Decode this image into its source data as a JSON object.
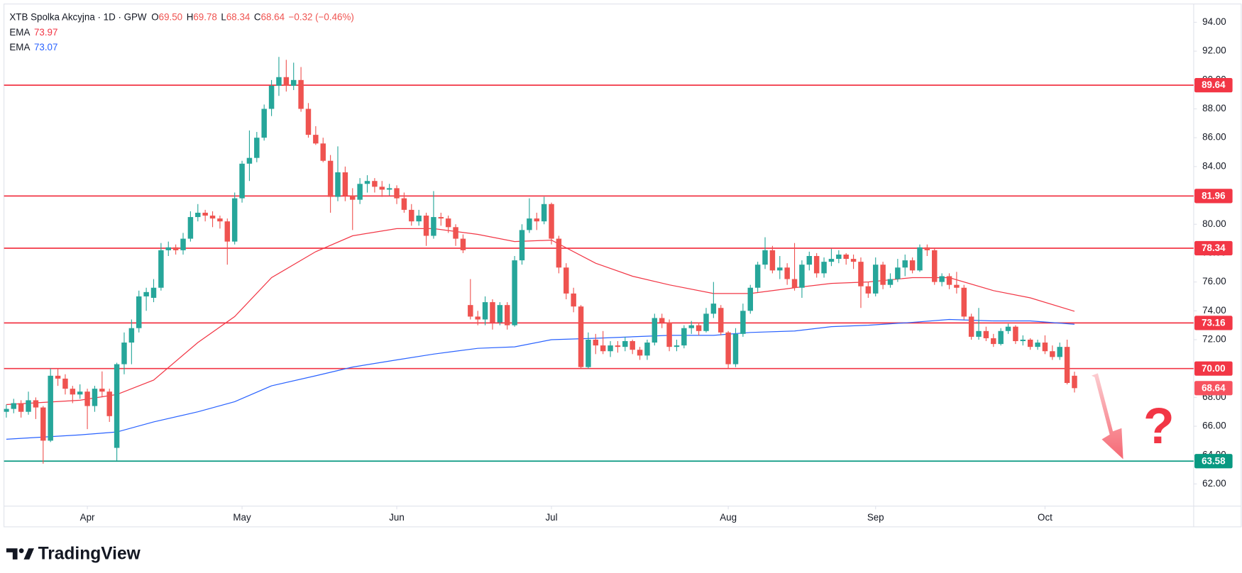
{
  "chart_data": {
    "type": "candlestick",
    "header": {
      "symbol": "XTB Spolka Akcyjna · 1D · GPW",
      "fields": [
        {
          "key": "O",
          "value": "69.50"
        },
        {
          "key": "H",
          "value": "69.78"
        },
        {
          "key": "L",
          "value": "68.34"
        },
        {
          "key": "C",
          "value": "68.64"
        }
      ],
      "change": "−0.32 (−0.46%)"
    },
    "up_color": "#26a69a",
    "down_color": "#ef5350",
    "xlim": [
      -0.32,
      161.18
    ],
    "ylim": [
      60.46,
      95.27
    ],
    "grid": false,
    "xticks": [
      {
        "value": 11,
        "label": "Apr"
      },
      {
        "value": 32,
        "label": "May"
      },
      {
        "value": 53,
        "label": "Jun"
      },
      {
        "value": 74,
        "label": "Jul"
      },
      {
        "value": 98,
        "label": "Aug"
      },
      {
        "value": 118,
        "label": "Sep"
      },
      {
        "value": 141,
        "label": "Oct"
      }
    ],
    "yticks": [
      {
        "value": 62,
        "label": "62.00"
      },
      {
        "value": 64,
        "label": "64.00"
      },
      {
        "value": 66,
        "label": "66.00"
      },
      {
        "value": 68,
        "label": "68.00"
      },
      {
        "value": 70,
        "label": "70.00"
      },
      {
        "value": 72,
        "label": "72.00"
      },
      {
        "value": 74,
        "label": "74.00"
      },
      {
        "value": 76,
        "label": "76.00"
      },
      {
        "value": 78,
        "label": "78.00"
      },
      {
        "value": 80,
        "label": "80.00"
      },
      {
        "value": 82,
        "label": "82.00"
      },
      {
        "value": 84,
        "label": "84.00"
      },
      {
        "value": 86,
        "label": "86.00"
      },
      {
        "value": 88,
        "label": "88.00"
      },
      {
        "value": 90,
        "label": "90.00"
      },
      {
        "value": 92,
        "label": "92.00"
      },
      {
        "value": 94,
        "label": "94.00"
      }
    ],
    "ohlc": [
      [
        67.0,
        67.5,
        66.6,
        67.2
      ],
      [
        67.2,
        67.9,
        66.9,
        67.6
      ],
      [
        67.6,
        67.8,
        66.6,
        67.0
      ],
      [
        67.0,
        68.4,
        66.8,
        67.8
      ],
      [
        67.8,
        68.0,
        66.5,
        67.3
      ],
      [
        67.3,
        67.4,
        63.4,
        65.0
      ],
      [
        65.0,
        70.0,
        64.9,
        69.5
      ],
      [
        69.5,
        70.0,
        68.8,
        69.3
      ],
      [
        69.3,
        69.6,
        68.2,
        68.6
      ],
      [
        68.6,
        68.8,
        67.6,
        68.2
      ],
      [
        68.2,
        68.9,
        67.9,
        68.4
      ],
      [
        68.4,
        68.6,
        65.8,
        67.4
      ],
      [
        67.4,
        68.8,
        67.0,
        68.6
      ],
      [
        68.6,
        69.8,
        68.0,
        68.4
      ],
      [
        68.4,
        68.6,
        66.3,
        66.7
      ],
      [
        64.5,
        70.4,
        63.6,
        70.3
      ],
      [
        70.3,
        72.5,
        69.6,
        71.8
      ],
      [
        71.8,
        73.4,
        70.3,
        72.8
      ],
      [
        72.8,
        75.4,
        72.5,
        75.0
      ],
      [
        75.0,
        75.6,
        74.0,
        75.3
      ],
      [
        74.9,
        76.2,
        74.6,
        75.6
      ],
      [
        75.6,
        78.7,
        75.4,
        78.2
      ],
      [
        78.2,
        78.8,
        77.8,
        78.4
      ],
      [
        78.4,
        78.6,
        77.9,
        78.2
      ],
      [
        78.2,
        79.4,
        77.9,
        79.0
      ],
      [
        79.0,
        80.9,
        78.8,
        80.5
      ],
      [
        80.5,
        81.4,
        80.2,
        80.8
      ],
      [
        80.8,
        81.0,
        80.2,
        80.6
      ],
      [
        80.6,
        80.9,
        79.8,
        80.4
      ],
      [
        80.4,
        80.6,
        79.7,
        80.2
      ],
      [
        80.2,
        80.4,
        77.2,
        78.8
      ],
      [
        78.8,
        82.2,
        78.6,
        81.8
      ],
      [
        81.8,
        84.4,
        81.5,
        84.2
      ],
      [
        84.2,
        86.5,
        83.0,
        84.6
      ],
      [
        84.6,
        86.4,
        84.3,
        86.0
      ],
      [
        86.0,
        88.3,
        85.8,
        88.0
      ],
      [
        88.0,
        90.0,
        87.5,
        89.6
      ],
      [
        89.6,
        91.6,
        88.9,
        90.2
      ],
      [
        90.2,
        91.4,
        89.2,
        89.6
      ],
      [
        89.6,
        91.2,
        89.3,
        90.0
      ],
      [
        90.0,
        90.9,
        87.8,
        88.0
      ],
      [
        88.0,
        88.4,
        86.0,
        86.2
      ],
      [
        86.2,
        86.8,
        85.5,
        85.6
      ],
      [
        85.6,
        86.0,
        84.3,
        84.4
      ],
      [
        84.4,
        84.8,
        80.8,
        81.9
      ],
      [
        81.9,
        85.4,
        81.6,
        83.6
      ],
      [
        83.6,
        84.0,
        81.6,
        82.0
      ],
      [
        82.0,
        82.5,
        79.6,
        81.7
      ],
      [
        81.7,
        83.2,
        81.4,
        82.8
      ],
      [
        82.8,
        83.4,
        82.2,
        83.0
      ],
      [
        83.0,
        83.2,
        82.2,
        82.6
      ],
      [
        82.6,
        83.0,
        81.9,
        82.4
      ],
      [
        82.4,
        82.8,
        82.0,
        82.5
      ],
      [
        82.5,
        82.7,
        81.4,
        81.8
      ],
      [
        81.8,
        82.2,
        80.8,
        81.0
      ],
      [
        81.0,
        81.4,
        79.9,
        80.2
      ],
      [
        80.2,
        81.0,
        79.9,
        80.6
      ],
      [
        80.6,
        80.8,
        78.5,
        79.2
      ],
      [
        79.2,
        82.3,
        79.0,
        80.5
      ],
      [
        80.5,
        80.8,
        79.9,
        80.4
      ],
      [
        80.4,
        80.6,
        79.4,
        79.8
      ],
      [
        79.8,
        80.0,
        78.5,
        79.0
      ],
      [
        79.0,
        79.3,
        78.0,
        78.2
      ],
      [
        74.4,
        76.2,
        73.4,
        73.6
      ],
      [
        73.6,
        74.0,
        73.0,
        73.4
      ],
      [
        73.4,
        75.0,
        73.0,
        74.6
      ],
      [
        74.6,
        74.8,
        72.7,
        73.2
      ],
      [
        73.2,
        74.6,
        73.0,
        74.4
      ],
      [
        74.4,
        74.6,
        72.7,
        73.0
      ],
      [
        73.0,
        77.8,
        72.9,
        77.5
      ],
      [
        77.5,
        80.0,
        77.2,
        79.6
      ],
      [
        79.6,
        81.8,
        79.4,
        80.4
      ],
      [
        80.4,
        80.8,
        79.6,
        80.2
      ],
      [
        80.2,
        81.9,
        80.0,
        81.4
      ],
      [
        81.4,
        81.5,
        78.6,
        79.0
      ],
      [
        79.0,
        79.2,
        76.6,
        77.0
      ],
      [
        77.0,
        77.3,
        74.8,
        75.2
      ],
      [
        75.2,
        75.6,
        73.9,
        74.3
      ],
      [
        74.3,
        74.4,
        70.0,
        70.1
      ],
      [
        70.1,
        72.5,
        70.0,
        72.0
      ],
      [
        72.0,
        72.4,
        71.0,
        71.6
      ],
      [
        71.6,
        72.6,
        71.0,
        71.2
      ],
      [
        71.2,
        71.9,
        70.8,
        71.6
      ],
      [
        71.6,
        71.9,
        71.1,
        71.5
      ],
      [
        71.5,
        72.2,
        71.2,
        71.9
      ],
      [
        71.9,
        72.0,
        71.0,
        71.3
      ],
      [
        71.3,
        71.5,
        70.6,
        70.9
      ],
      [
        70.9,
        72.0,
        70.6,
        71.8
      ],
      [
        71.8,
        73.8,
        71.6,
        73.5
      ],
      [
        73.5,
        73.8,
        72.8,
        73.2
      ],
      [
        73.2,
        73.4,
        71.2,
        71.5
      ],
      [
        71.5,
        72.0,
        71.2,
        71.6
      ],
      [
        71.6,
        73.0,
        71.4,
        72.8
      ],
      [
        72.8,
        73.3,
        72.4,
        73.0
      ],
      [
        73.0,
        73.2,
        72.3,
        72.6
      ],
      [
        72.6,
        74.2,
        72.5,
        73.8
      ],
      [
        73.8,
        76.0,
        73.5,
        74.5
      ],
      [
        74.2,
        74.4,
        72.3,
        72.5
      ],
      [
        72.5,
        72.6,
        70.0,
        70.3
      ],
      [
        70.3,
        72.8,
        70.1,
        72.4
      ],
      [
        72.4,
        74.5,
        72.2,
        74.0
      ],
      [
        74.0,
        75.8,
        73.8,
        75.6
      ],
      [
        75.6,
        77.4,
        75.3,
        77.2
      ],
      [
        77.2,
        79.1,
        76.9,
        78.2
      ],
      [
        78.2,
        78.5,
        76.6,
        76.8
      ],
      [
        76.8,
        77.8,
        76.2,
        77.0
      ],
      [
        77.0,
        77.3,
        75.8,
        76.2
      ],
      [
        76.2,
        78.7,
        75.4,
        75.6
      ],
      [
        75.6,
        77.5,
        74.9,
        77.2
      ],
      [
        77.2,
        78.1,
        76.8,
        77.8
      ],
      [
        77.8,
        78.0,
        76.3,
        76.6
      ],
      [
        76.6,
        77.7,
        76.3,
        77.4
      ],
      [
        77.4,
        78.3,
        77.1,
        77.6
      ],
      [
        77.6,
        78.2,
        77.3,
        77.9
      ],
      [
        77.9,
        78.0,
        77.2,
        77.6
      ],
      [
        77.6,
        77.9,
        76.9,
        77.4
      ],
      [
        77.4,
        77.7,
        74.2,
        75.7
      ],
      [
        75.7,
        76.0,
        74.9,
        75.2
      ],
      [
        75.2,
        77.7,
        75.0,
        77.2
      ],
      [
        77.2,
        77.4,
        75.5,
        75.8
      ],
      [
        75.8,
        76.6,
        75.6,
        76.2
      ],
      [
        76.2,
        77.6,
        76.0,
        77.0
      ],
      [
        77.0,
        77.9,
        76.4,
        77.5
      ],
      [
        77.5,
        77.7,
        76.6,
        76.8
      ],
      [
        76.8,
        78.6,
        76.7,
        78.4
      ],
      [
        78.4,
        78.6,
        77.8,
        78.2
      ],
      [
        78.2,
        78.3,
        75.8,
        76.0
      ],
      [
        76.0,
        76.6,
        75.7,
        76.4
      ],
      [
        76.4,
        76.6,
        75.5,
        75.8
      ],
      [
        75.8,
        76.7,
        75.2,
        75.6
      ],
      [
        75.6,
        75.8,
        73.4,
        73.6
      ],
      [
        73.6,
        73.8,
        72.0,
        72.2
      ],
      [
        72.2,
        74.2,
        72.0,
        72.6
      ],
      [
        72.6,
        72.9,
        71.9,
        72.1
      ],
      [
        72.1,
        72.4,
        71.5,
        71.7
      ],
      [
        71.7,
        72.8,
        71.6,
        72.6
      ],
      [
        72.6,
        73.1,
        72.4,
        72.9
      ],
      [
        72.9,
        73.0,
        71.7,
        71.9
      ],
      [
        71.9,
        72.3,
        71.6,
        72.0
      ],
      [
        72.0,
        72.1,
        71.3,
        71.5
      ],
      [
        71.5,
        72.0,
        71.3,
        71.8
      ],
      [
        71.8,
        72.3,
        71.0,
        71.2
      ],
      [
        71.2,
        71.6,
        70.6,
        70.8
      ],
      [
        70.8,
        71.8,
        70.6,
        71.5
      ],
      [
        71.5,
        72.0,
        68.9,
        69.0
      ],
      [
        69.5,
        69.78,
        68.34,
        68.64
      ]
    ],
    "series": [
      {
        "name": "EMA",
        "color": "#f23645",
        "last_value": 73.97,
        "x": [
          0,
          10,
          15,
          20,
          26,
          31,
          36,
          42,
          47,
          53,
          58,
          64,
          69,
          74,
          80,
          85,
          90,
          96,
          101,
          107,
          112,
          117,
          123,
          128,
          134,
          139,
          145
        ],
        "values": [
          67.5,
          67.8,
          68.2,
          69.2,
          71.8,
          73.6,
          76.3,
          78.1,
          79.2,
          79.7,
          79.7,
          79.3,
          78.8,
          78.9,
          77.3,
          76.4,
          75.8,
          75.2,
          75.2,
          75.6,
          75.9,
          76.0,
          76.3,
          76.3,
          75.4,
          74.9,
          73.97
        ]
      },
      {
        "name": "EMA",
        "color": "#2962ff",
        "last_value": 73.07,
        "x": [
          0,
          10,
          15,
          20,
          26,
          31,
          36,
          42,
          47,
          53,
          58,
          64,
          69,
          74,
          80,
          85,
          90,
          96,
          101,
          107,
          112,
          117,
          123,
          128,
          134,
          139,
          145
        ],
        "values": [
          65.1,
          65.4,
          65.6,
          66.3,
          67.0,
          67.7,
          68.8,
          69.5,
          70.1,
          70.6,
          71.0,
          71.4,
          71.5,
          72.0,
          72.1,
          72.2,
          72.3,
          72.3,
          72.5,
          72.6,
          72.9,
          73.0,
          73.2,
          73.4,
          73.3,
          73.3,
          73.07
        ]
      }
    ],
    "levels": [
      {
        "value": 89.64,
        "color": "#f23645"
      },
      {
        "value": 81.96,
        "color": "#f23645"
      },
      {
        "value": 78.34,
        "color": "#f23645"
      },
      {
        "value": 73.16,
        "color": "#f23645"
      },
      {
        "value": 70,
        "value_label": "70.00",
        "color": "#f23645"
      },
      {
        "value": 63.58,
        "color": "#089981"
      }
    ],
    "last_price": {
      "value": 68.64,
      "color": "#f7525f"
    },
    "annotation": "?",
    "brand": "TradingView"
  }
}
